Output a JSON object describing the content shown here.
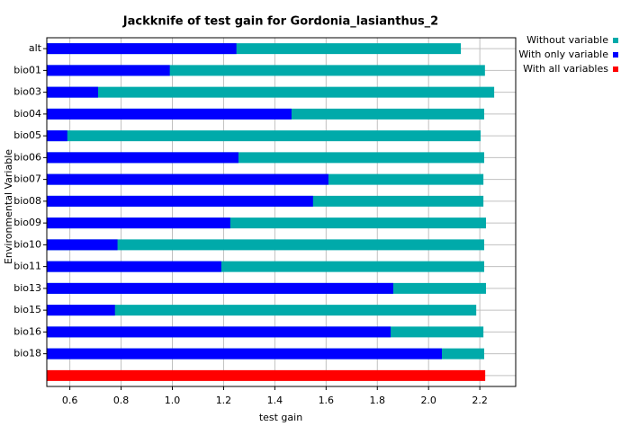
{
  "chart_data": {
    "type": "bar",
    "orientation": "horizontal",
    "title": "Jackknife of test gain for Gordonia_lasianthus_2",
    "x_label": "test gain",
    "y_label": "Environmental Variable",
    "categories": [
      "alt",
      "bio01",
      "bio03",
      "bio04",
      "bio05",
      "bio06",
      "bio07",
      "bio08",
      "bio09",
      "bio10",
      "bio11",
      "bio13",
      "bio15",
      "bio16",
      "bio18",
      null
    ],
    "series": [
      {
        "name": "Without variable",
        "color": "#00aaaa",
        "values": [
          2.126,
          2.22,
          2.256,
          2.217,
          2.203,
          2.217,
          2.214,
          2.214,
          2.224,
          2.217,
          2.217,
          2.224,
          2.186,
          2.214,
          2.217,
          null
        ]
      },
      {
        "name": "With only variable",
        "color": "#0000ff",
        "values": [
          1.25,
          0.99,
          0.71,
          1.465,
          0.59,
          1.258,
          1.609,
          1.549,
          1.226,
          0.786,
          1.191,
          1.862,
          0.776,
          1.852,
          2.052,
          null
        ]
      },
      {
        "name": "With all variables",
        "color": "#ff0000",
        "values": [
          null,
          null,
          null,
          null,
          null,
          null,
          null,
          null,
          null,
          null,
          null,
          null,
          null,
          null,
          null,
          2.221
        ]
      }
    ],
    "xlim": [
      0.51,
      2.34
    ],
    "xticks": [
      0.6,
      0.8,
      {
        "value": 1,
        "label": "1.0"
      },
      1.2,
      1.4,
      1.6,
      1.8,
      {
        "value": 2,
        "label": "2.0"
      },
      2.2
    ],
    "grid": true,
    "legend": "top-right"
  }
}
